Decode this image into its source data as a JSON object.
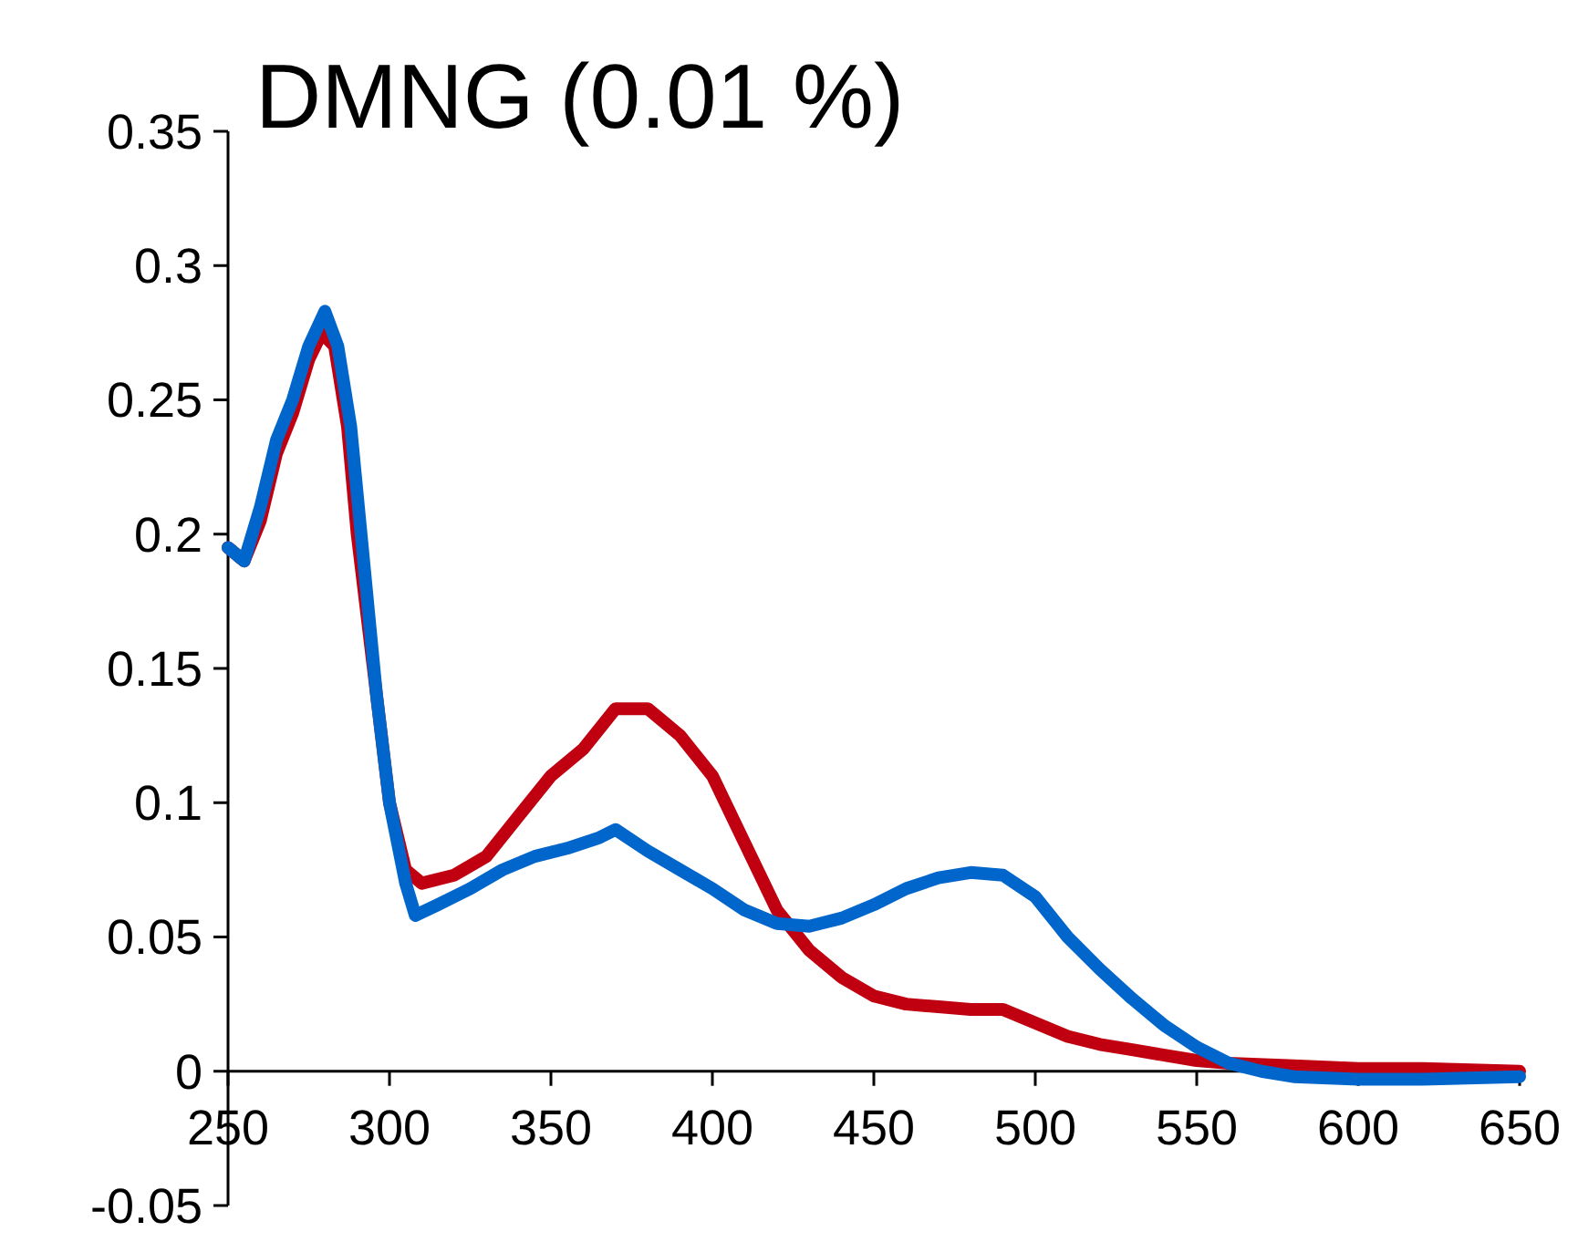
{
  "chart_data": {
    "type": "line",
    "title": "DMNG (0.01 %)",
    "xlim": [
      250,
      650
    ],
    "ylim": [
      -0.05,
      0.35
    ],
    "xticks": [
      250,
      300,
      350,
      400,
      450,
      500,
      550,
      600,
      650
    ],
    "yticks": [
      -0.05,
      0,
      0.05,
      0.1,
      0.15,
      0.2,
      0.25,
      0.3,
      0.35
    ],
    "grid": false,
    "marker": "none",
    "line_style": "solid",
    "series": [
      {
        "color": "#c00010",
        "x": [
          250,
          255,
          260,
          265,
          270,
          275,
          279,
          283,
          287,
          290,
          295,
          300,
          305,
          310,
          320,
          330,
          340,
          350,
          360,
          370,
          380,
          390,
          400,
          410,
          420,
          430,
          440,
          450,
          460,
          470,
          480,
          490,
          500,
          510,
          520,
          530,
          540,
          550,
          560,
          580,
          600,
          620,
          650
        ],
        "values": [
          0.195,
          0.19,
          0.205,
          0.23,
          0.245,
          0.265,
          0.275,
          0.27,
          0.24,
          0.2,
          0.15,
          0.1,
          0.075,
          0.07,
          0.073,
          0.08,
          0.095,
          0.11,
          0.12,
          0.135,
          0.135,
          0.125,
          0.11,
          0.085,
          0.06,
          0.045,
          0.035,
          0.028,
          0.025,
          0.024,
          0.023,
          0.023,
          0.018,
          0.013,
          0.01,
          0.008,
          0.006,
          0.004,
          0.003,
          0.002,
          0.001,
          0.001,
          0
        ]
      },
      {
        "color": "#0066cc",
        "x": [
          250,
          255,
          260,
          265,
          270,
          275,
          280,
          284,
          288,
          292,
          296,
          300,
          305,
          308,
          315,
          325,
          335,
          345,
          355,
          365,
          370,
          380,
          390,
          400,
          410,
          420,
          430,
          440,
          450,
          460,
          470,
          480,
          490,
          500,
          510,
          520,
          530,
          540,
          550,
          560,
          570,
          580,
          600,
          620,
          650
        ],
        "values": [
          0.195,
          0.19,
          0.21,
          0.235,
          0.25,
          0.27,
          0.283,
          0.27,
          0.24,
          0.19,
          0.14,
          0.1,
          0.07,
          0.058,
          0.062,
          0.068,
          0.075,
          0.08,
          0.083,
          0.087,
          0.09,
          0.082,
          0.075,
          0.068,
          0.06,
          0.055,
          0.054,
          0.057,
          0.062,
          0.068,
          0.072,
          0.074,
          0.073,
          0.065,
          0.05,
          0.038,
          0.027,
          0.017,
          0.009,
          0.003,
          0,
          -0.002,
          -0.003,
          -0.003,
          -0.002
        ]
      }
    ]
  }
}
